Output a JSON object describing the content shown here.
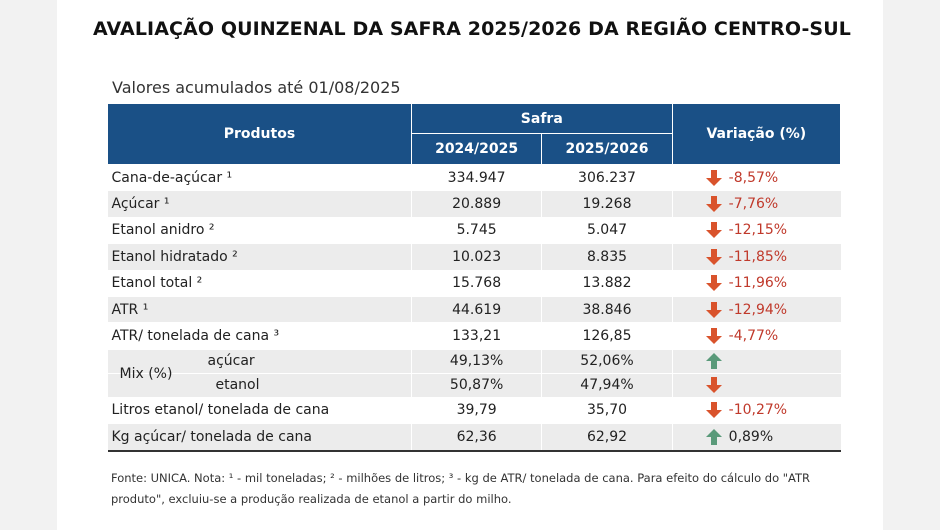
{
  "title": "AVALIAÇÃO QUINZENAL DA SAFRA 2025/2026 DA REGIÃO CENTRO-SUL",
  "subtitle": "Valores acumulados até 01/08/2025",
  "table": {
    "header": {
      "produtos": "Produtos",
      "safra": "Safra",
      "year1": "2024/2025",
      "year2": "2025/2026",
      "variacao": "Variação (%)"
    },
    "rows": [
      {
        "produto": "Cana-de-açúcar ¹",
        "v1": "334.947",
        "v2": "306.237",
        "variacao": "-8,57%",
        "direction": "down"
      },
      {
        "produto": "Açúcar ¹",
        "v1": "20.889",
        "v2": "19.268",
        "variacao": "-7,76%",
        "direction": "down"
      },
      {
        "produto": "Etanol anidro ²",
        "v1": "5.745",
        "v2": "5.047",
        "variacao": "-12,15%",
        "direction": "down"
      },
      {
        "produto": "Etanol hidratado ²",
        "v1": "10.023",
        "v2": "8.835",
        "variacao": "-11,85%",
        "direction": "down"
      },
      {
        "produto": "Etanol total ²",
        "v1": "15.768",
        "v2": "13.882",
        "variacao": "-11,96%",
        "direction": "down"
      },
      {
        "produto": "ATR ¹",
        "v1": "44.619",
        "v2": "38.846",
        "variacao": "-12,94%",
        "direction": "down"
      },
      {
        "produto": "ATR/ tonelada de cana ³",
        "v1": "133,21",
        "v2": "126,85",
        "variacao": "-4,77%",
        "direction": "down"
      }
    ],
    "mix": {
      "label": "Mix (%)",
      "acucar": {
        "label": "açúcar",
        "v1": "49,13%",
        "v2": "52,06%",
        "direction": "up"
      },
      "etanol": {
        "label": "etanol",
        "v1": "50,87%",
        "v2": "47,94%",
        "direction": "down"
      }
    },
    "tail_rows": [
      {
        "produto": "Litros etanol/ tonelada de cana",
        "v1": "39,79",
        "v2": "35,70",
        "variacao": "-10,27%",
        "direction": "down"
      },
      {
        "produto": "Kg açúcar/ tonelada de cana",
        "v1": "62,36",
        "v2": "62,92",
        "variacao": "0,89%",
        "direction": "up"
      }
    ]
  },
  "footnote": "Fonte: UNICA. Nota: ¹ - mil toneladas; ² - milhões de litros; ³ - kg de ATR/ tonelada de cana. Para efeito do cálculo do \"ATR produto\", excluiu-se a produção realizada de etanol a partir do milho.",
  "colors": {
    "header_bg": "#1a5086",
    "row_alt": "#ececec",
    "down_arrow": "#d9532c",
    "up_arrow": "#5a9a7a",
    "negative_text": "#c0392b"
  },
  "icons": {
    "down": "arrow-down-icon",
    "up": "arrow-up-icon"
  }
}
